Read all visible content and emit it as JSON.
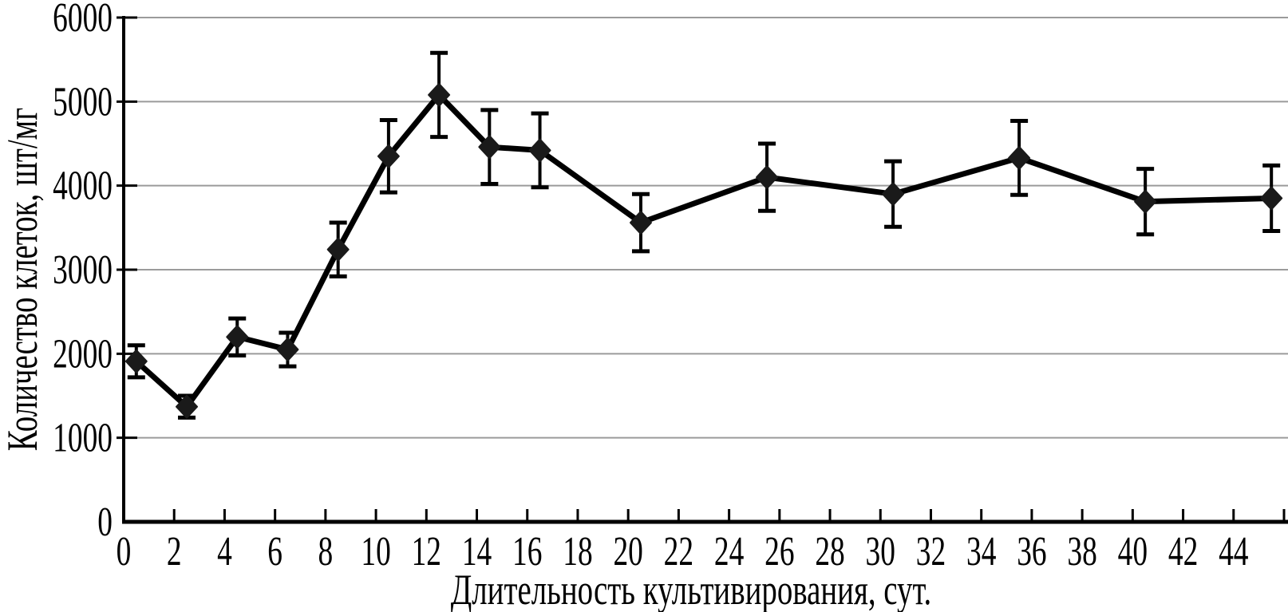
{
  "figure": {
    "background_color": "#ffffff",
    "description": "Line chart with diamond markers and vertical error bars"
  },
  "chart_data": {
    "type": "line",
    "title": "",
    "xlabel": "Длительность культивирования, сут.",
    "ylabel": "Количество клеток, шт/мг",
    "x": [
      0.5,
      2.5,
      4.5,
      6.5,
      8.5,
      10.5,
      12.5,
      14.5,
      16.5,
      20.5,
      25.5,
      30.5,
      35.5,
      40.5,
      45.5
    ],
    "series": [
      {
        "name": "Количество клеток",
        "values": [
          1910,
          1370,
          2200,
          2050,
          3240,
          4350,
          5080,
          4460,
          4420,
          3560,
          4100,
          3900,
          4330,
          3810,
          3850
        ],
        "errors": [
          190,
          130,
          220,
          200,
          320,
          430,
          500,
          440,
          440,
          340,
          400,
          390,
          440,
          390,
          390
        ]
      }
    ],
    "xlim": [
      0,
      46
    ],
    "ylim": [
      0,
      6000
    ],
    "xtick_labels": [
      0,
      2,
      4,
      6,
      8,
      10,
      12,
      14,
      16,
      18,
      20,
      22,
      24,
      26,
      28,
      30,
      32,
      34,
      36,
      38,
      40,
      42,
      44
    ],
    "xtick_marks": [
      2,
      4,
      6,
      8,
      10,
      12,
      14,
      16,
      18,
      20,
      22,
      24,
      26,
      28,
      30,
      32,
      34,
      36,
      38,
      40,
      42,
      44,
      46
    ],
    "yticks": [
      0,
      1000,
      2000,
      3000,
      4000,
      5000,
      6000
    ],
    "grid": "horizontal",
    "legend": "none",
    "marker": "diamond",
    "colors": {
      "line": "#000000",
      "marker": "#1a1a1a",
      "error_bar": "#000000",
      "grid": "#9b9b9b",
      "axis": "#000000",
      "text": "#000000"
    }
  }
}
